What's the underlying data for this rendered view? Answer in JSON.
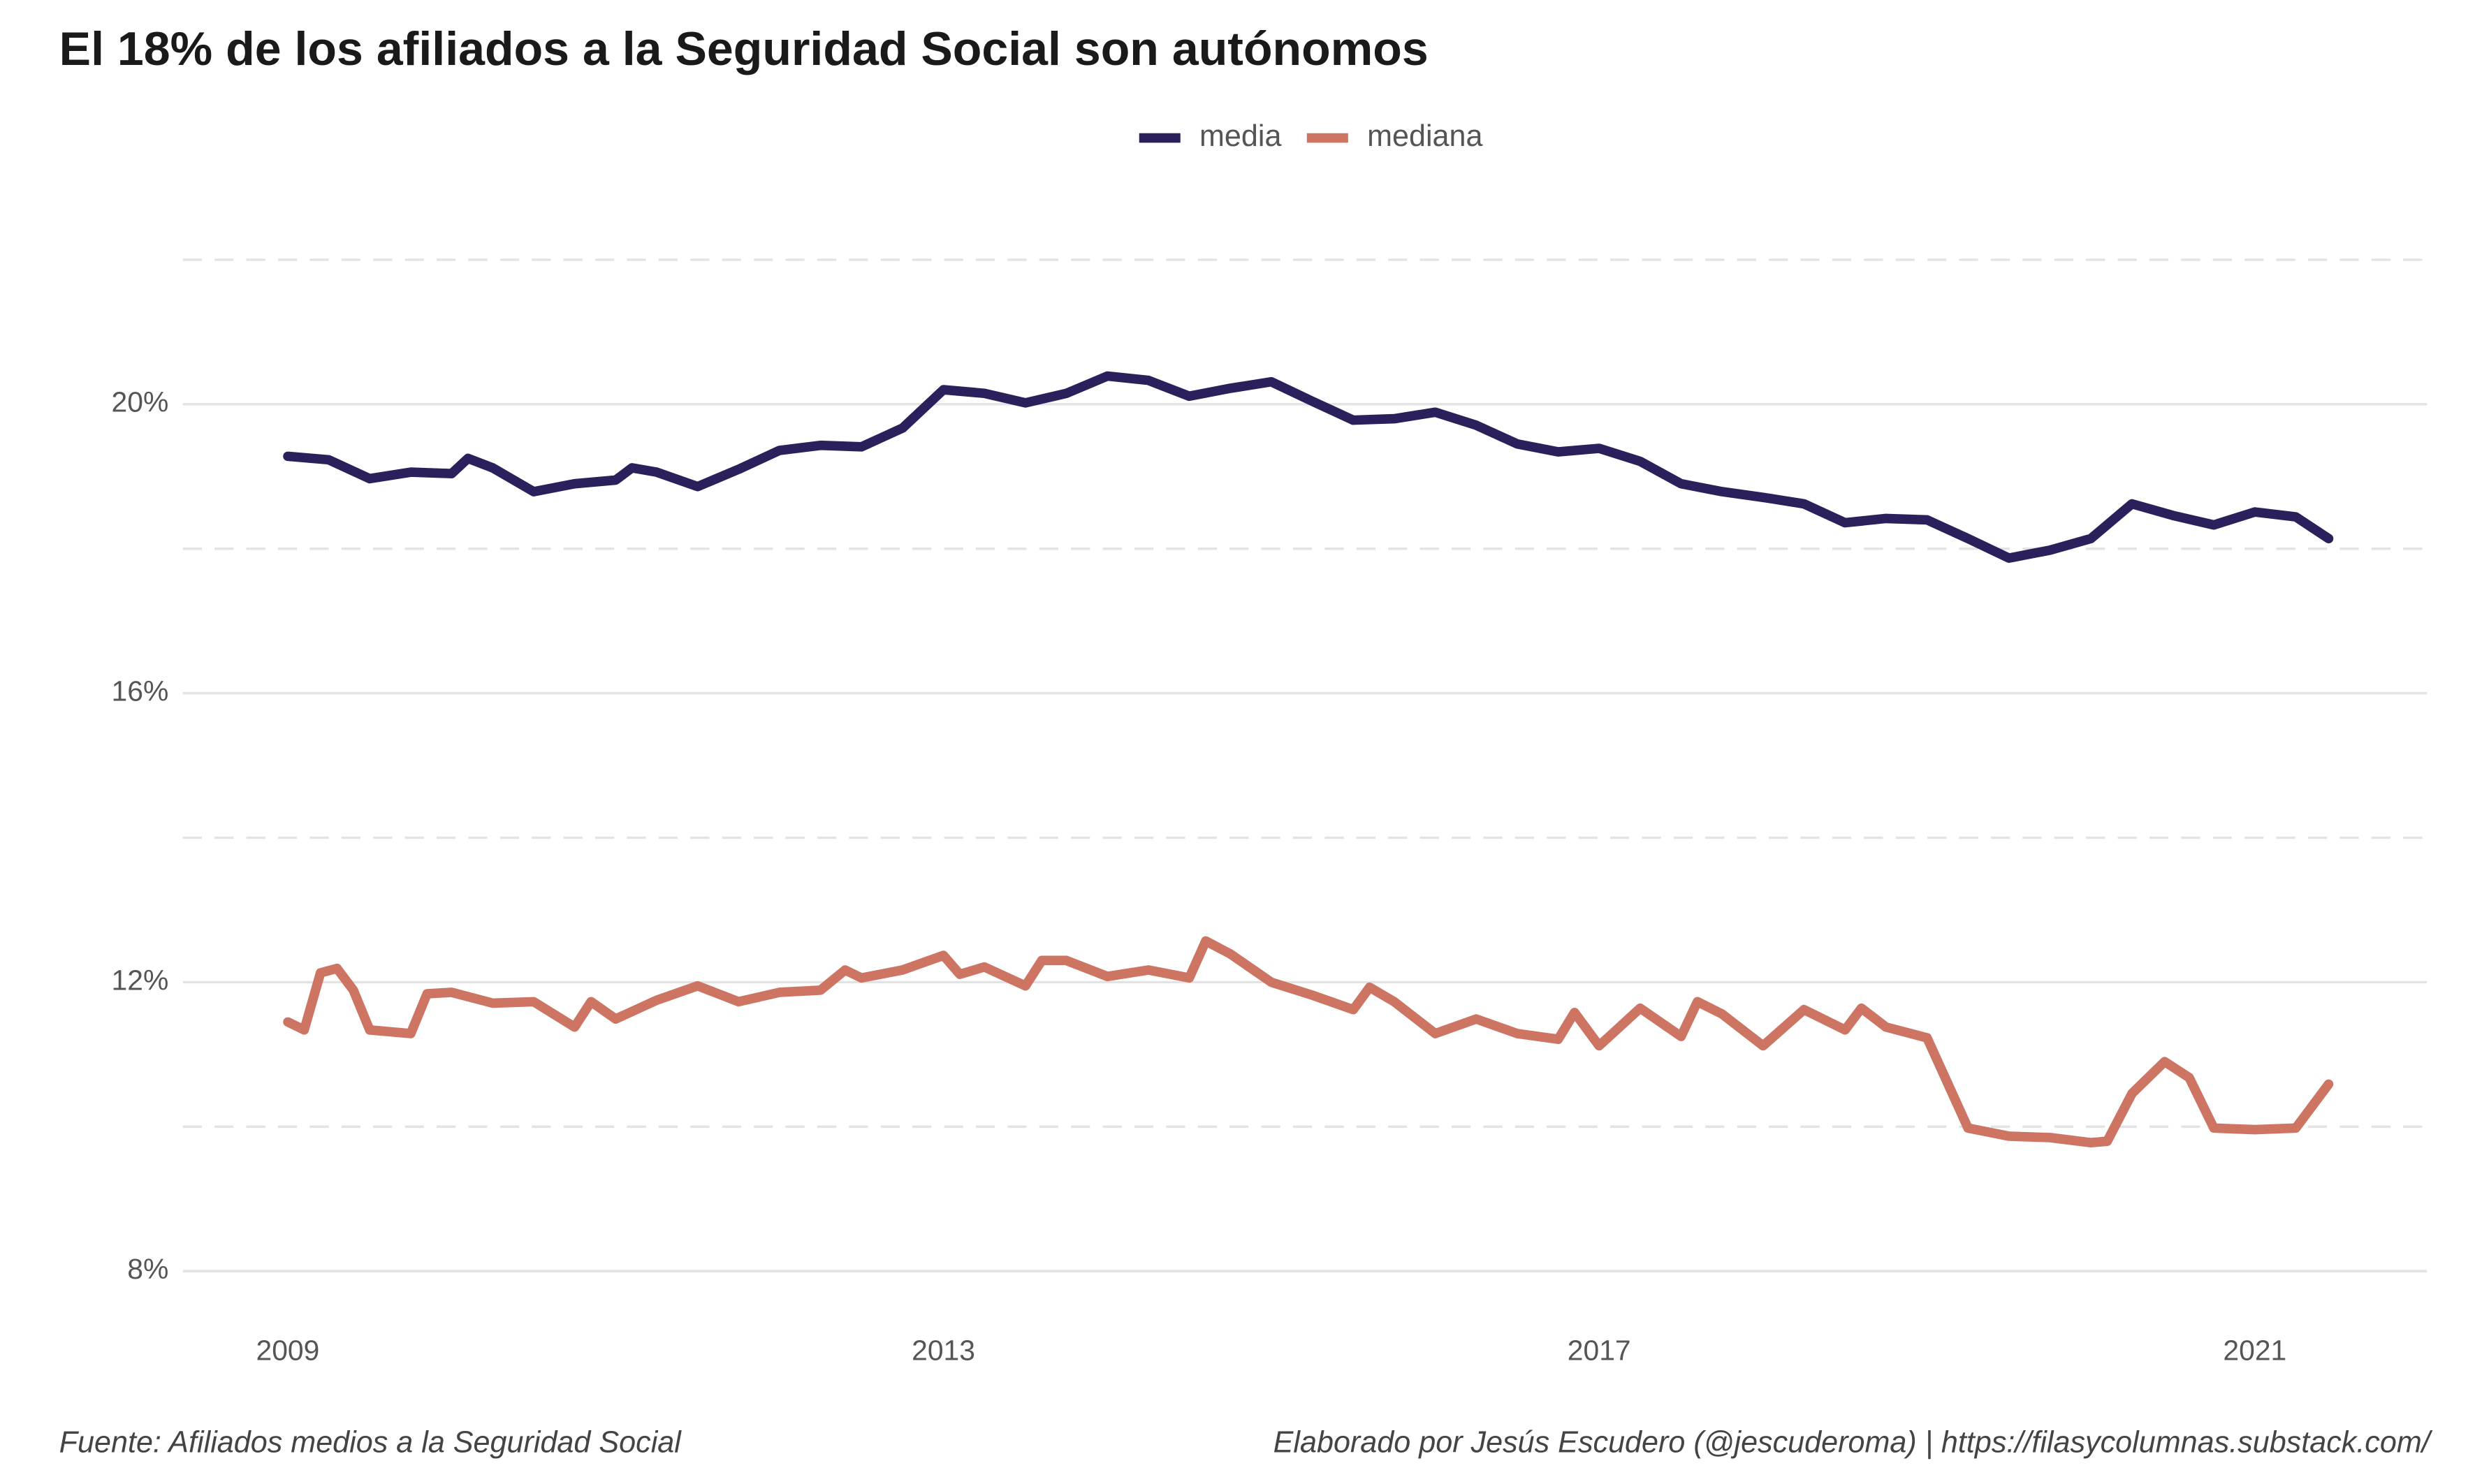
{
  "chart_data": {
    "type": "line",
    "title": "El 18% de los afiliados a la Seguridad Social son autónomos",
    "source": "Fuente: Afiliados medios a la Seguridad Social",
    "credit": "Elaborado por Jesús Escudero (@jescuderoma) | https://filasycolumnas.substack.com/",
    "legend": "top",
    "grid": true,
    "xlim": [
      2008.36,
      2022.05
    ],
    "xticks": [
      2009,
      2013,
      2017,
      2021
    ],
    "ylim": [
      7.6,
      22.4
    ],
    "yticks": [
      {
        "value": 8,
        "label": "8%"
      },
      {
        "value": 12,
        "label": "12%"
      },
      {
        "value": 16,
        "label": "16%"
      },
      {
        "value": 20,
        "label": "20%"
      }
    ],
    "minor_grid": [
      10,
      14,
      18,
      22
    ],
    "series": [
      {
        "name": "media",
        "color": "#2b1f5c",
        "x": [
          2009.0,
          2009.25,
          2009.5,
          2009.75,
          2010.0,
          2010.1,
          2010.25,
          2010.5,
          2010.75,
          2011.0,
          2011.1,
          2011.25,
          2011.5,
          2011.75,
          2012.0,
          2012.25,
          2012.5,
          2012.75,
          2013.0,
          2013.25,
          2013.5,
          2013.75,
          2014.0,
          2014.25,
          2014.5,
          2014.75,
          2015.0,
          2015.25,
          2015.5,
          2015.75,
          2016.0,
          2016.25,
          2016.5,
          2016.75,
          2017.0,
          2017.25,
          2017.5,
          2017.75,
          2018.0,
          2018.25,
          2018.5,
          2018.75,
          2019.0,
          2019.25,
          2019.5,
          2019.75,
          2020.0,
          2020.25,
          2020.5,
          2020.75,
          2021.0,
          2021.25,
          2021.45
        ],
        "values": [
          19.28,
          19.23,
          18.97,
          19.06,
          19.04,
          19.25,
          19.12,
          18.79,
          18.9,
          18.95,
          19.12,
          19.06,
          18.86,
          19.1,
          19.36,
          19.43,
          19.41,
          19.67,
          20.2,
          20.15,
          20.02,
          20.15,
          20.39,
          20.33,
          20.11,
          20.22,
          20.31,
          20.04,
          19.78,
          19.8,
          19.89,
          19.71,
          19.45,
          19.34,
          19.39,
          19.21,
          18.9,
          18.79,
          18.71,
          18.62,
          18.36,
          18.42,
          18.4,
          18.14,
          17.87,
          17.98,
          18.14,
          18.62,
          18.46,
          18.33,
          18.51,
          18.44,
          18.14
        ]
      },
      {
        "name": "mediana",
        "color": "#cd7463",
        "x": [
          2009.0,
          2009.1,
          2009.2,
          2009.3,
          2009.4,
          2009.5,
          2009.75,
          2009.85,
          2010.0,
          2010.25,
          2010.5,
          2010.75,
          2010.85,
          2011.0,
          2011.25,
          2011.5,
          2011.75,
          2012.0,
          2012.25,
          2012.4,
          2012.5,
          2012.75,
          2013.0,
          2013.1,
          2013.25,
          2013.5,
          2013.6,
          2013.75,
          2014.0,
          2014.25,
          2014.5,
          2014.6,
          2014.75,
          2015.0,
          2015.25,
          2015.5,
          2015.6,
          2015.75,
          2016.0,
          2016.25,
          2016.5,
          2016.75,
          2016.85,
          2017.0,
          2017.25,
          2017.5,
          2017.6,
          2017.75,
          2018.0,
          2018.25,
          2018.5,
          2018.6,
          2018.75,
          2019.0,
          2019.25,
          2019.5,
          2019.75,
          2020.0,
          2020.1,
          2020.25,
          2020.45,
          2020.6,
          2020.75,
          2021.0,
          2021.25,
          2021.45
        ],
        "values": [
          11.45,
          11.34,
          12.13,
          12.19,
          11.89,
          11.34,
          11.29,
          11.84,
          11.86,
          11.71,
          11.73,
          11.38,
          11.73,
          11.49,
          11.75,
          11.95,
          11.73,
          11.86,
          11.89,
          12.17,
          12.06,
          12.17,
          12.37,
          12.11,
          12.21,
          11.95,
          12.3,
          12.3,
          12.08,
          12.17,
          12.06,
          12.57,
          12.39,
          12.0,
          11.82,
          11.62,
          11.93,
          11.73,
          11.29,
          11.49,
          11.29,
          11.21,
          11.58,
          11.12,
          11.64,
          11.25,
          11.73,
          11.56,
          11.12,
          11.62,
          11.34,
          11.64,
          11.38,
          11.23,
          9.98,
          9.87,
          9.85,
          9.78,
          9.8,
          10.46,
          10.9,
          10.68,
          9.98,
          9.96,
          9.98,
          10.59
        ]
      }
    ]
  }
}
